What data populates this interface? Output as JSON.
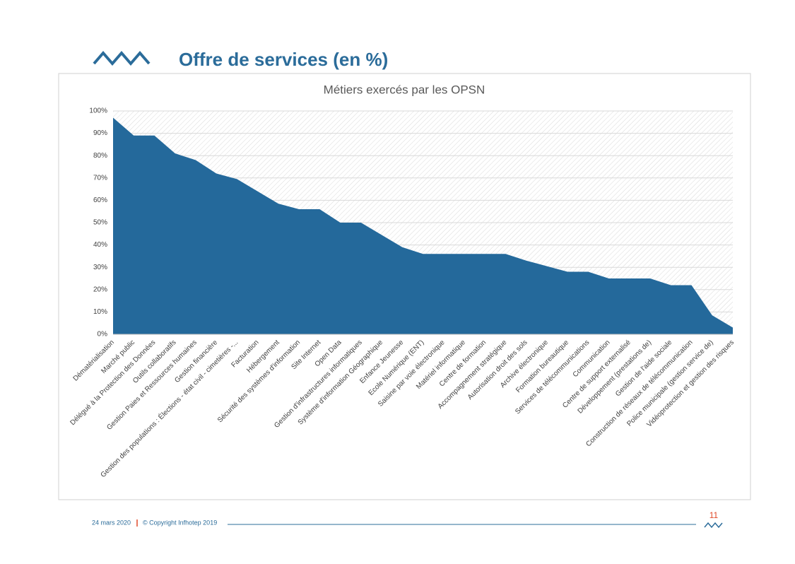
{
  "slide": {
    "title": "Offre de services (en %)"
  },
  "chart_data": {
    "type": "area",
    "title": "Métiers exercés par les OPSN",
    "color": "#24699b",
    "categories": [
      "Dématérialisation",
      "Marché public",
      "Délégué à la Protection des Données",
      "Outils collaboratifs",
      "Gestion Paies et Ressources humaines",
      "Gestion financière",
      "Gestion des populations : Élections - état civil - cimetières -...",
      "Facturation",
      "Hébergement",
      "Sécurité des systèmes d'information",
      "Site Internet",
      "Open Data",
      "Gestion d'infrastructures informatiques",
      "Système d'information Géographique",
      "Enfance Jeunesse",
      "Ecole Numérique (ENT)",
      "Saisine par voie électronique",
      "Matériel informatique",
      "Centre de formation",
      "Accompagnement stratégique",
      "Autorisation droit des sols",
      "Archive électronique",
      "Formation bureautique",
      "Services de télécommunications",
      "Communication",
      "Centre de support externalisé",
      "Développement (prestations de)",
      "Gestion de l'aide sociale",
      "Construction de réseaux de télécommunication",
      "Police municipale (gestion service de)",
      "Vidéoprotection et gestion des risques"
    ],
    "values": [
      97,
      89,
      89,
      81,
      78,
      72,
      69.5,
      64,
      58.5,
      56,
      56,
      50,
      50,
      44.5,
      39,
      36,
      36,
      36,
      36,
      36,
      33,
      30.5,
      28,
      28,
      25,
      25,
      25,
      22,
      22,
      8.5,
      3
    ],
    "ylim": [
      0,
      100
    ],
    "yticks": [
      {
        "value": 0,
        "label": "0%"
      },
      {
        "value": 10,
        "label": "10%"
      },
      {
        "value": 20,
        "label": "20%"
      },
      {
        "value": 30,
        "label": "30%"
      },
      {
        "value": 40,
        "label": "40%"
      },
      {
        "value": 50,
        "label": "50%"
      },
      {
        "value": 60,
        "label": "60%"
      },
      {
        "value": 70,
        "label": "70%"
      },
      {
        "value": 80,
        "label": "80%"
      },
      {
        "value": 90,
        "label": "90%"
      },
      {
        "value": 100,
        "label": "100%"
      }
    ],
    "grid": true
  },
  "footer": {
    "date": "24 mars 2020",
    "copyright": "© Copyright Infhotep 2019",
    "page": "11"
  }
}
